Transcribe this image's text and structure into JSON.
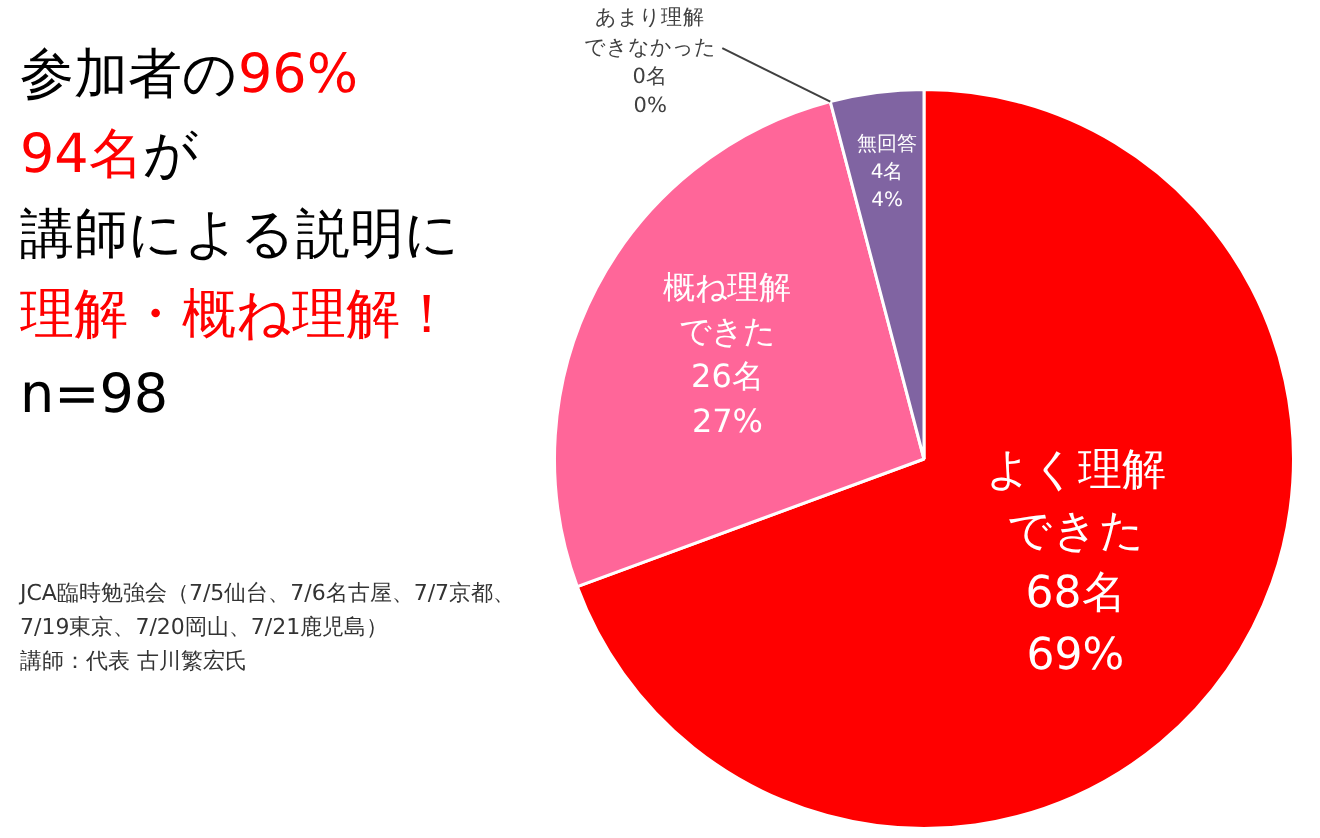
{
  "chart_data": {
    "type": "pie",
    "title": "参加者の96%",
    "subtitle": "94名が",
    "categories": [
      "よく理解できた",
      "概ね理解できた",
      "あまり理解できなかった",
      "無回答"
    ],
    "values": [
      68,
      26,
      0,
      4
    ],
    "value_labels": [
      "68名\n69%",
      "26名\n27%",
      "0名\n0%",
      "4名\n4%"
    ],
    "colors": [
      "#ff0000",
      "#ff6699",
      "#4f81bd",
      "#8064a2"
    ],
    "legend": false,
    "annotations": [
      "講師による説明に",
      "理解・概ね理解！",
      "n=98",
      "JCA臨時勉強会（7/5仙台、7/6名古屋、7/7京都、7/19東京、7/20岡山、7/21鹿児島）",
      "講師：代表 古川繁宏氏"
    ]
  }
}
